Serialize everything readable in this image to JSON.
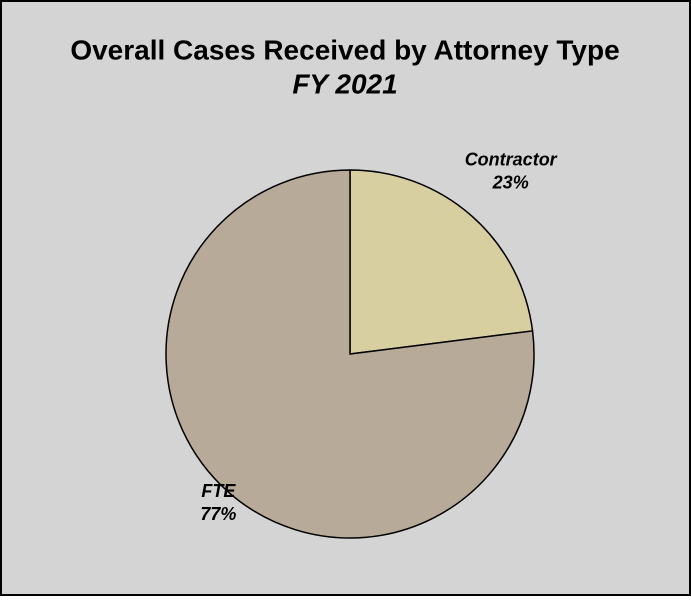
{
  "chart_data": {
    "type": "pie",
    "title": "Overall Cases Received by Attorney Type",
    "subtitle": "FY 2021",
    "categories": [
      "Contractor",
      "FTE"
    ],
    "values": [
      23,
      77
    ],
    "value_labels": [
      "23%",
      "77%"
    ],
    "colors": [
      "#d8cfa0",
      "#b8aa98"
    ]
  }
}
